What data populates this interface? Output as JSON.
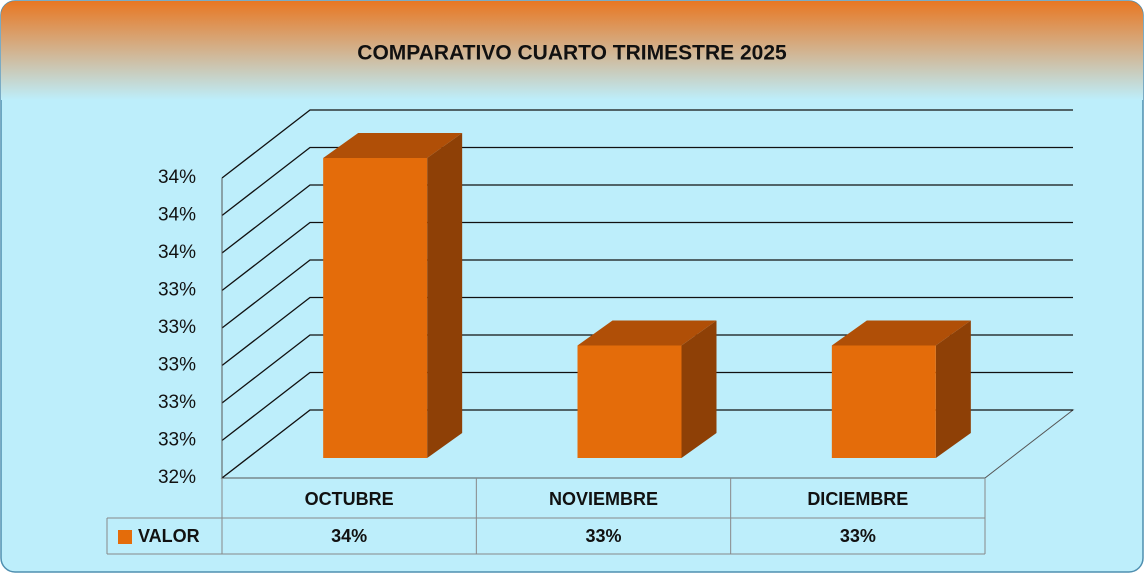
{
  "chart_data": {
    "type": "bar3d",
    "title": "COMPARATIVO CUARTO TRIMESTRE 2025",
    "categories": [
      "OCTUBRE",
      "NOVIEMBRE",
      "DICIEMBRE"
    ],
    "series": [
      {
        "name": "VALOR",
        "color": "#e46c0a",
        "values": [
          34.0,
          33.0,
          33.0
        ],
        "value_labels": [
          "34%",
          "33%",
          "33%"
        ]
      }
    ],
    "ylim": [
      32.4,
      34.0
    ],
    "yticks": [
      {
        "value": 32.4,
        "label": "32%"
      },
      {
        "value": 32.6,
        "label": "33%"
      },
      {
        "value": 32.8,
        "label": "33%"
      },
      {
        "value": 33.0,
        "label": "33%"
      },
      {
        "value": 33.2,
        "label": "33%"
      },
      {
        "value": 33.4,
        "label": "33%"
      },
      {
        "value": 33.6,
        "label": "34%"
      },
      {
        "value": 33.8,
        "label": "34%"
      },
      {
        "value": 34.0,
        "label": "34%"
      }
    ],
    "grid": true
  }
}
